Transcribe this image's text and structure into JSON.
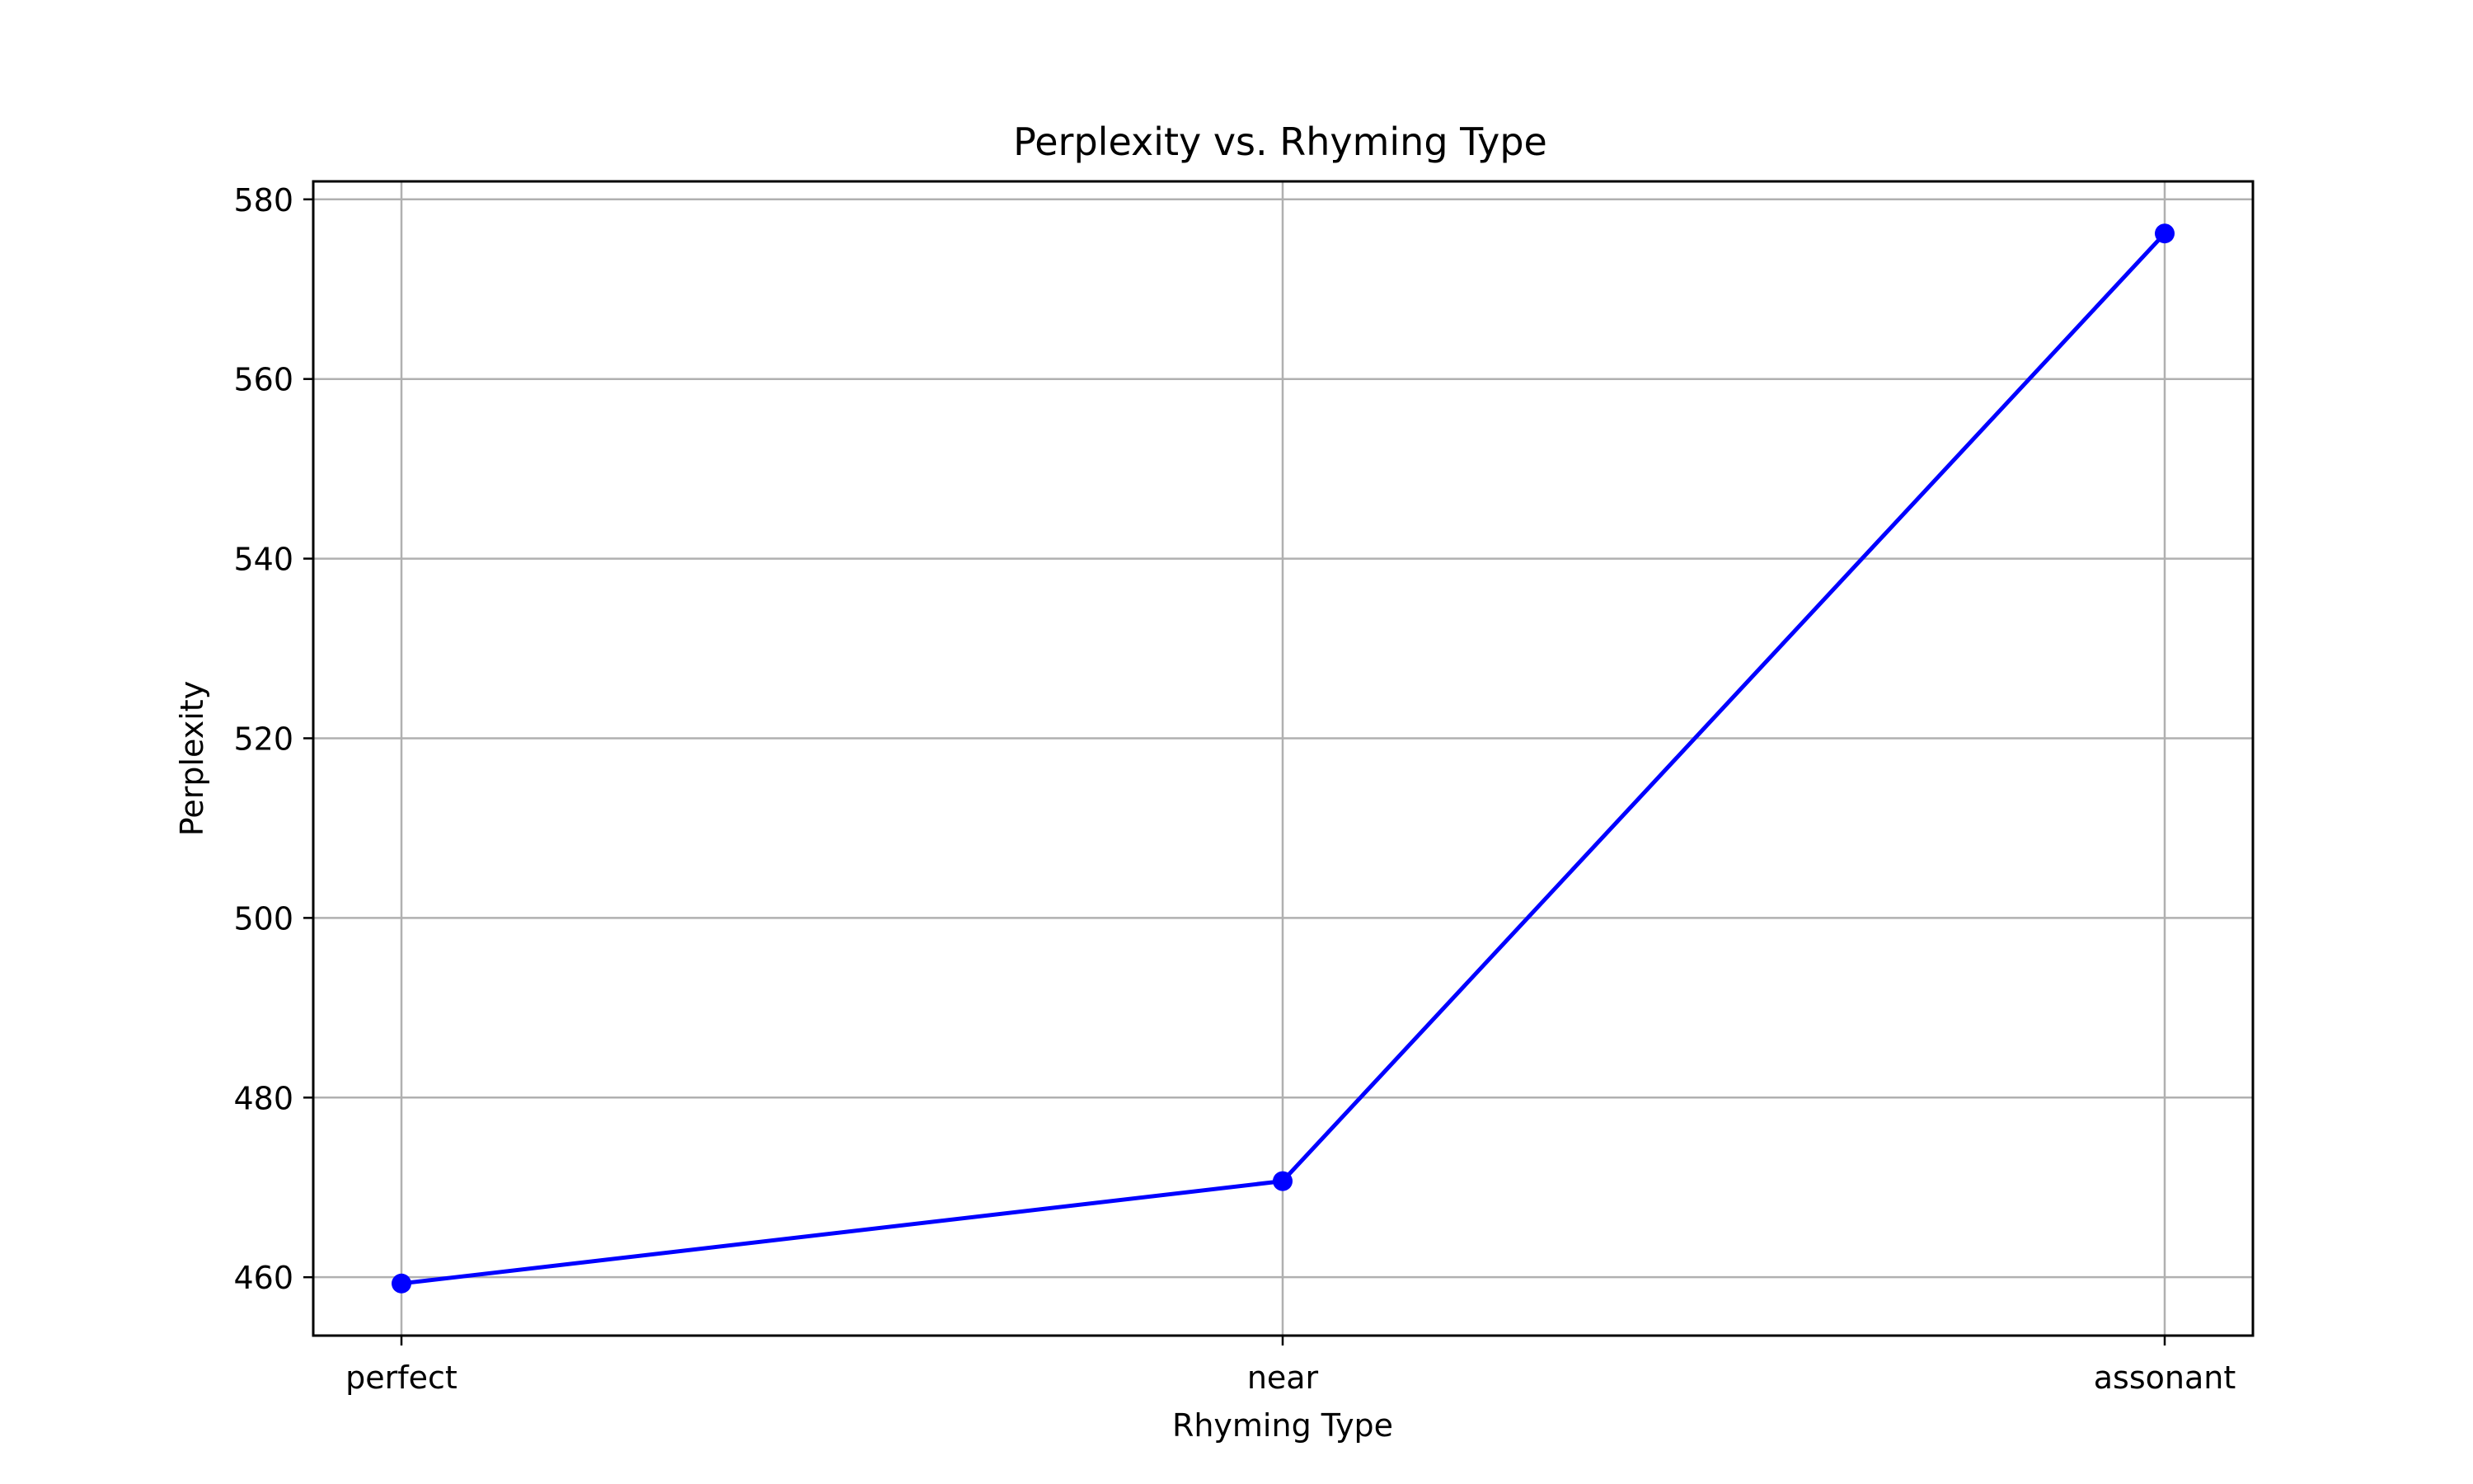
{
  "chart_data": {
    "type": "line",
    "title": "Perplexity vs. Rhyming Type",
    "xlabel": "Rhyming Type",
    "ylabel": "Perplexity",
    "categories": [
      "perfect",
      "near",
      "assonant"
    ],
    "series": [
      {
        "values": [
          459.3,
          470.7,
          576.2
        ],
        "color": "#0000ff",
        "marker": "circle"
      }
    ],
    "ylim": [
      453.5,
      582
    ],
    "yticks": [
      460,
      480,
      500,
      520,
      540,
      560,
      580
    ],
    "grid": true,
    "legend": false
  }
}
